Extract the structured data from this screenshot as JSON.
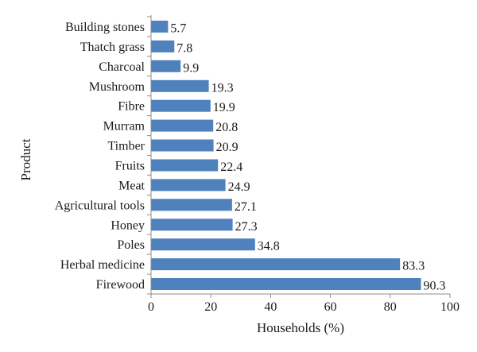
{
  "chart_data": {
    "type": "bar",
    "orientation": "horizontal",
    "title": "",
    "xlabel": "Households (%)",
    "ylabel": "Product",
    "xlim": [
      0,
      100
    ],
    "xticks": [
      0,
      20,
      40,
      60,
      80,
      100
    ],
    "grid": false,
    "bar_color": "#4f81bd",
    "categories": [
      "Building stones",
      "Thatch grass",
      "Charcoal",
      "Mushroom",
      "Fibre",
      "Murram",
      "Timber",
      "Fruits",
      "Meat",
      "Agricultural tools",
      "Honey",
      "Poles",
      "Herbal medicine",
      "Firewood"
    ],
    "values": [
      5.7,
      7.8,
      9.9,
      19.3,
      19.9,
      20.8,
      20.9,
      22.4,
      24.9,
      27.1,
      27.3,
      34.8,
      83.3,
      90.3
    ],
    "value_labels": [
      "5.7",
      "7.8",
      "9.9",
      "19.3",
      "19.9",
      "20.8",
      "20.9",
      "22.4",
      "24.9",
      "27.1",
      "27.3",
      "34.8",
      "83.3",
      "90.3"
    ]
  }
}
